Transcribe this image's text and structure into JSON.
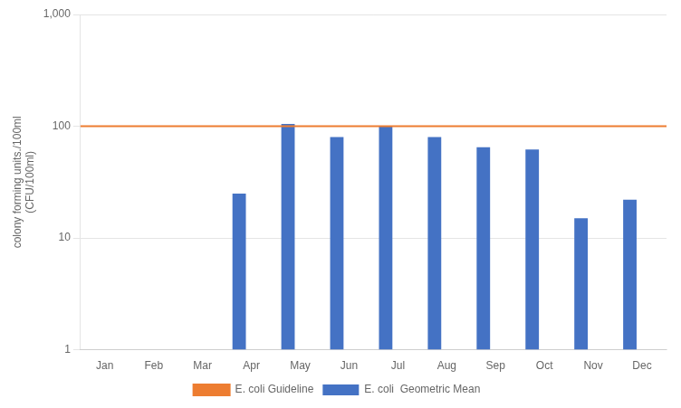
{
  "chart_data": {
    "type": "bar",
    "categories": [
      "Jan",
      "Feb",
      "Mar",
      "Apr",
      "May",
      "Jun",
      "Jul",
      "Aug",
      "Sep",
      "Oct",
      "Nov",
      "Dec"
    ],
    "series": [
      {
        "name": "E. coli  Geometric Mean",
        "color": "#4472C4",
        "values": [
          null,
          null,
          null,
          25,
          105,
          80,
          100,
          80,
          65,
          62,
          15,
          22
        ]
      },
      {
        "name": "E. coli Guideline",
        "type": "line",
        "color": "#ED7D31",
        "values": [
          100,
          100,
          100,
          100,
          100,
          100,
          100,
          100,
          100,
          100,
          100,
          100
        ]
      }
    ],
    "y_label": "colony forming units./100ml\n(CFU/100ml)",
    "log": "y",
    "ylim": [
      1,
      1000
    ],
    "yticks": [
      1,
      10,
      100,
      {
        "value": 1000,
        "label": "1,000"
      }
    ],
    "grid": true,
    "legend": "bottom"
  }
}
